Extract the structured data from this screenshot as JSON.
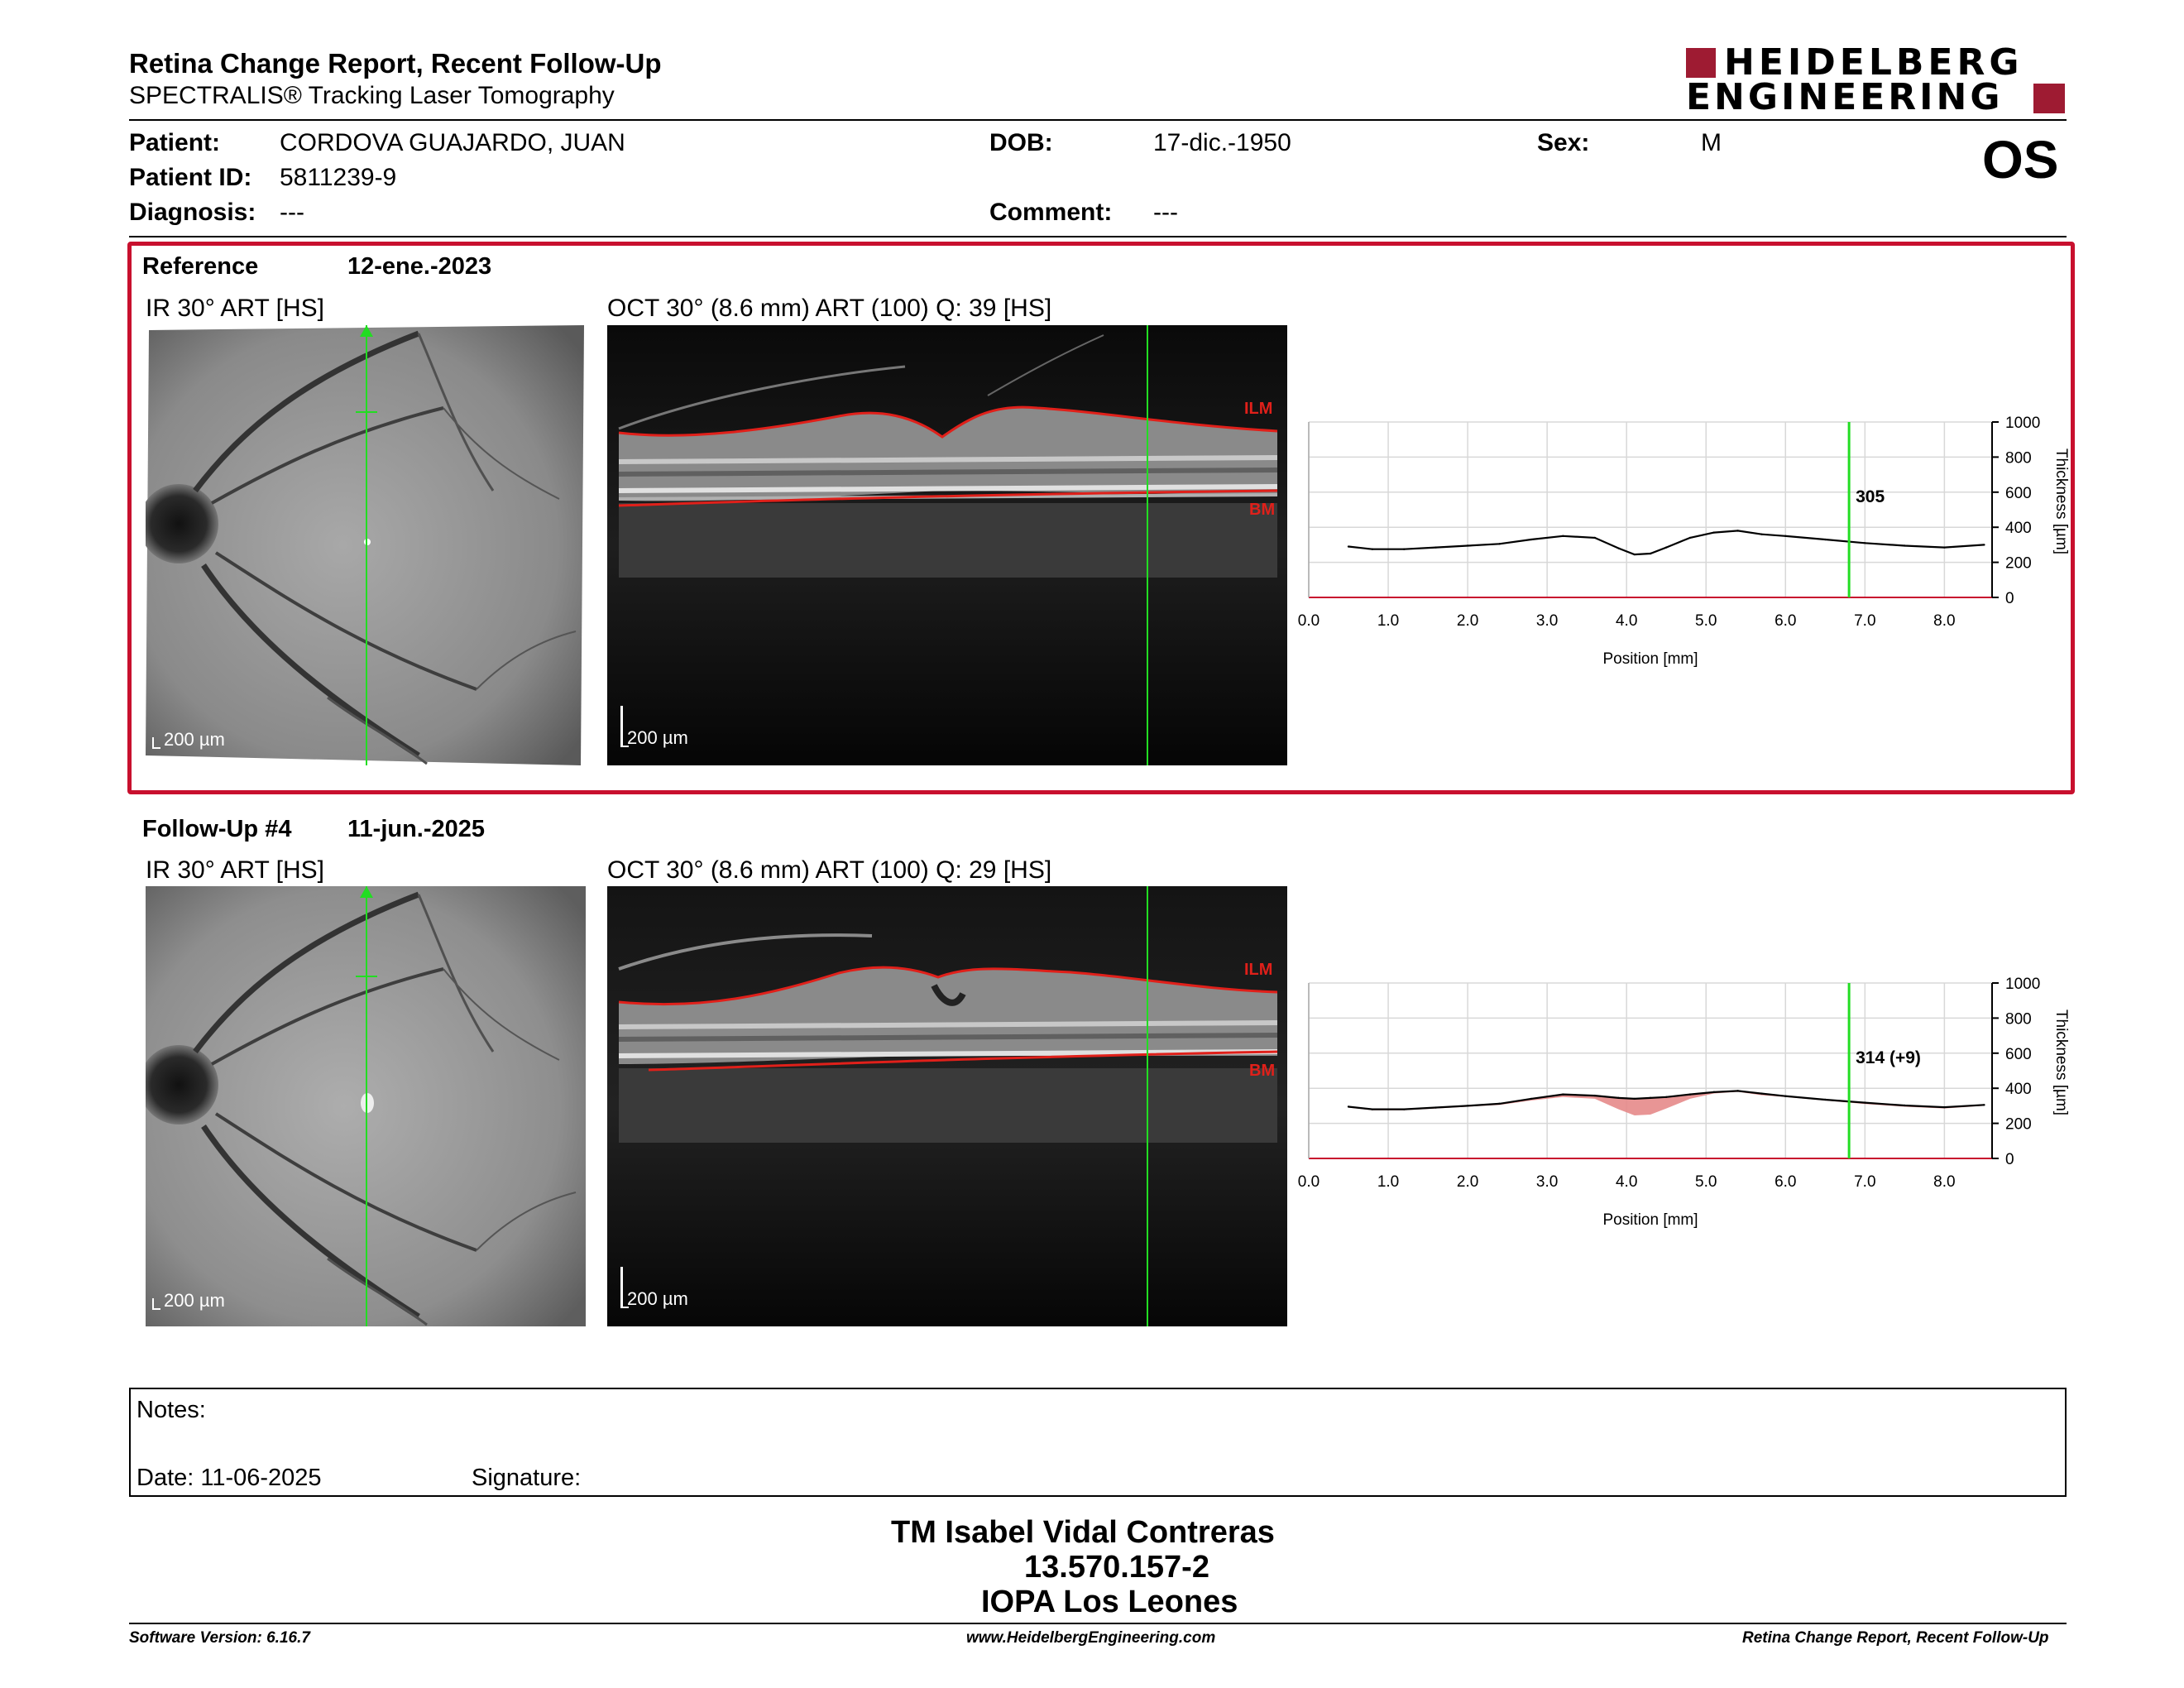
{
  "header": {
    "title": "Retina Change Report, Recent Follow-Up",
    "subtitle": "SPECTRALIS® Tracking Laser Tomography",
    "logo_line1": "HEIDELBERG",
    "logo_line2": "ENGINEERING",
    "eye": "OS"
  },
  "patient": {
    "patient_label": "Patient:",
    "patient_value": "CORDOVA GUAJARDO, JUAN",
    "id_label": "Patient ID:",
    "id_value": "5811239-9",
    "diagnosis_label": "Diagnosis:",
    "diagnosis_value": "---",
    "dob_label": "DOB:",
    "dob_value": "17-dic.-1950",
    "comment_label": "Comment:",
    "comment_value": "---",
    "sex_label": "Sex:",
    "sex_value": "M"
  },
  "reference": {
    "label": "Reference",
    "date": "12-ene.-2023",
    "ir_title": "IR 30° ART [HS]",
    "oct_title": "OCT 30° (8.6 mm) ART (100) Q: 39 [HS]",
    "ir_scale": "200 µm",
    "oct_scale": "200 µm",
    "ilm": "ILM",
    "bm": "BM"
  },
  "followup": {
    "label": "Follow-Up #4",
    "date": "11-jun.-2025",
    "ir_title": "IR 30° ART [HS]",
    "oct_title": "OCT 30° (8.6 mm) ART (100) Q: 29 [HS]",
    "ir_scale": "200 µm",
    "oct_scale": "200 µm",
    "ilm": "ILM",
    "bm": "BM"
  },
  "notes": {
    "notes_label": "Notes:",
    "date_label": "Date: 11-06-2025",
    "signature_label": "Signature:"
  },
  "signoff": {
    "name": "TM Isabel Vidal Contreras",
    "rut": "13.570.157-2",
    "institution": "IOPA Los Leones"
  },
  "footer": {
    "software": "Software Version: 6.16.7",
    "website": "www.HeidelbergEngineering.com",
    "report": "Retina Change Report, Recent Follow-Up"
  },
  "colors": {
    "brand_red": "#9e1b32",
    "frame_red": "#c8102e",
    "marker_green": "#22dd22",
    "ilm_red": "#e0201a",
    "change_fill": "#e58a8a"
  },
  "chart_data": [
    {
      "type": "line",
      "name": "reference-thickness-profile",
      "xlabel": "Position [mm]",
      "ylabel": "Thickness [µm]",
      "xlim": [
        0.0,
        8.6
      ],
      "ylim": [
        0,
        1000
      ],
      "x_ticks": [
        "0.0",
        "1.0",
        "2.0",
        "3.0",
        "4.0",
        "5.0",
        "6.0",
        "7.0",
        "8.0"
      ],
      "y_ticks": [
        "0",
        "200",
        "400",
        "600",
        "800",
        "1000"
      ],
      "grid": true,
      "cursor_x": 6.8,
      "cursor_label": "305",
      "x": [
        0.5,
        0.8,
        1.2,
        1.6,
        2.0,
        2.4,
        2.8,
        3.2,
        3.6,
        3.9,
        4.1,
        4.3,
        4.5,
        4.8,
        5.1,
        5.4,
        5.7,
        6.0,
        6.5,
        7.0,
        7.5,
        8.0,
        8.5
      ],
      "values": [
        290,
        275,
        275,
        285,
        295,
        305,
        330,
        350,
        340,
        280,
        245,
        250,
        285,
        340,
        370,
        380,
        360,
        350,
        330,
        310,
        295,
        285,
        300
      ]
    },
    {
      "type": "line",
      "name": "followup-thickness-profile",
      "xlabel": "Position [mm]",
      "ylabel": "Thickness [µm]",
      "xlim": [
        0.0,
        8.6
      ],
      "ylim": [
        0,
        1000
      ],
      "x_ticks": [
        "0.0",
        "1.0",
        "2.0",
        "3.0",
        "4.0",
        "5.0",
        "6.0",
        "7.0",
        "8.0"
      ],
      "y_ticks": [
        "0",
        "200",
        "400",
        "600",
        "800",
        "1000"
      ],
      "grid": true,
      "cursor_x": 6.8,
      "cursor_label": "314 (+9)",
      "x": [
        0.5,
        0.8,
        1.2,
        1.6,
        2.0,
        2.4,
        2.8,
        3.2,
        3.6,
        3.9,
        4.1,
        4.3,
        4.5,
        4.8,
        5.1,
        5.4,
        5.7,
        6.0,
        6.5,
        7.0,
        7.5,
        8.0,
        8.5
      ],
      "values": [
        295,
        280,
        280,
        290,
        300,
        312,
        340,
        365,
        358,
        345,
        340,
        345,
        350,
        365,
        378,
        385,
        370,
        355,
        335,
        318,
        302,
        292,
        305
      ]
    }
  ]
}
